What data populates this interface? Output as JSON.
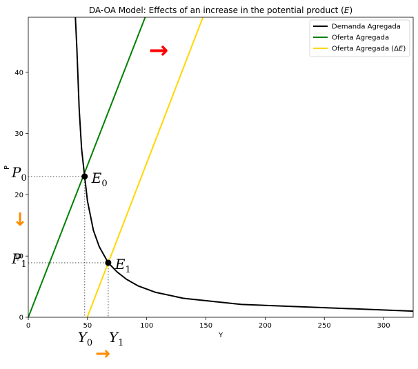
{
  "chart_data": {
    "type": "line",
    "title": "DA-OA Model: Effects of an increase in the potential product (E)",
    "title_main": "DA-OA Model: Effects of an increase in the potential product (",
    "title_var": "E",
    "title_end": ")",
    "xlabel": "Y",
    "ylabel": "P",
    "xlim": [
      0,
      325
    ],
    "ylim": [
      0,
      49
    ],
    "xticks": [
      0,
      50,
      100,
      150,
      200,
      250,
      300
    ],
    "yticks": [
      0,
      10,
      20,
      30,
      40
    ],
    "grid": false,
    "legend_position": "top-right",
    "series": [
      {
        "name": "Demanda Agregada",
        "color": "#000000",
        "x": [
          39.8,
          41,
          43,
          45,
          47.6,
          50,
          55,
          60,
          67.5,
          75,
          83,
          93,
          107,
          131,
          180,
          325
        ],
        "y": [
          49,
          44,
          34,
          27.5,
          23,
          19,
          14.2,
          11.5,
          8.9,
          7.4,
          6.2,
          5.1,
          4.1,
          3.1,
          2.1,
          1.0
        ]
      },
      {
        "name": "Oferta Agregada",
        "color": "#008000",
        "x": [
          0,
          98.7
        ],
        "y": [
          0,
          49
        ]
      },
      {
        "name": "Oferta Agregada (ΔE)",
        "legend_main": "Oferta Agregada (Δ",
        "legend_var": "E",
        "legend_end": ")",
        "color": "#ffd700",
        "x": [
          49.8,
          147.5
        ],
        "y": [
          0,
          49
        ]
      }
    ],
    "equilibria": [
      {
        "label": "E",
        "sub": "0",
        "x": 47.6,
        "y": 23.0
      },
      {
        "label": "E",
        "sub": "1",
        "x": 67.5,
        "y": 8.9
      }
    ],
    "axis_annotations": [
      {
        "label": "P",
        "sub": "0"
      },
      {
        "label": "P",
        "sub": "1"
      },
      {
        "label": "Y",
        "sub": "0"
      },
      {
        "label": "Y",
        "sub": "1"
      }
    ],
    "arrows": [
      {
        "symbol": "→",
        "color": "#ff0000"
      },
      {
        "symbol": "↓",
        "color": "#ff8c00"
      },
      {
        "symbol": "→",
        "color": "#ff8c00"
      }
    ]
  }
}
